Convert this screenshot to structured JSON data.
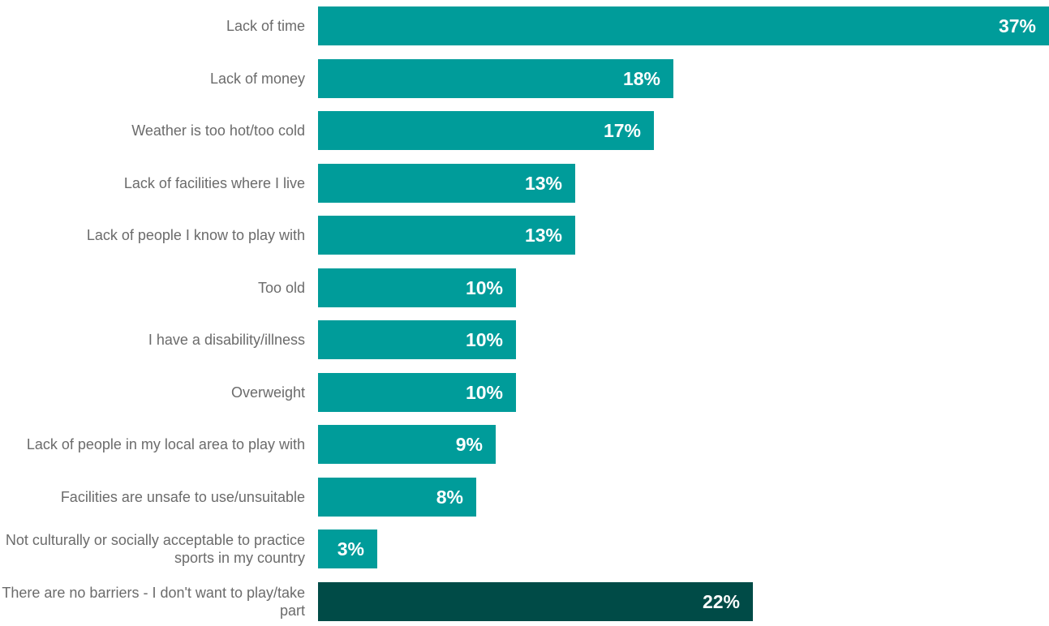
{
  "chart_data": {
    "type": "bar",
    "orientation": "horizontal",
    "categories": [
      "Lack of time",
      "Lack of money",
      "Weather is too hot/too cold",
      "Lack of facilities where I live",
      "Lack of people I know to play with",
      "Too old",
      "I have a disability/illness",
      "Overweight",
      "Lack of people in my local area to play with",
      "Facilities are unsafe to use/unsuitable",
      "Not culturally or socially acceptable to practice sports in my country",
      "There are no barriers - I don't want to play/take part"
    ],
    "values": [
      37,
      18,
      17,
      13,
      13,
      10,
      10,
      10,
      9,
      8,
      3,
      22
    ],
    "value_labels": [
      "37%",
      "18%",
      "17%",
      "13%",
      "13%",
      "10%",
      "10%",
      "10%",
      "9%",
      "8%",
      "3%",
      "22%"
    ],
    "unit": "%",
    "title": "",
    "xlabel": "",
    "ylabel": "",
    "xlim": [
      0,
      37
    ],
    "grid": false,
    "legend": "none",
    "colors": {
      "bar": "#009c9a",
      "highlight_bar": "#004b47",
      "label_text": "#6b6b6b",
      "value_text": "#ffffff"
    },
    "highlight_index": 11
  }
}
